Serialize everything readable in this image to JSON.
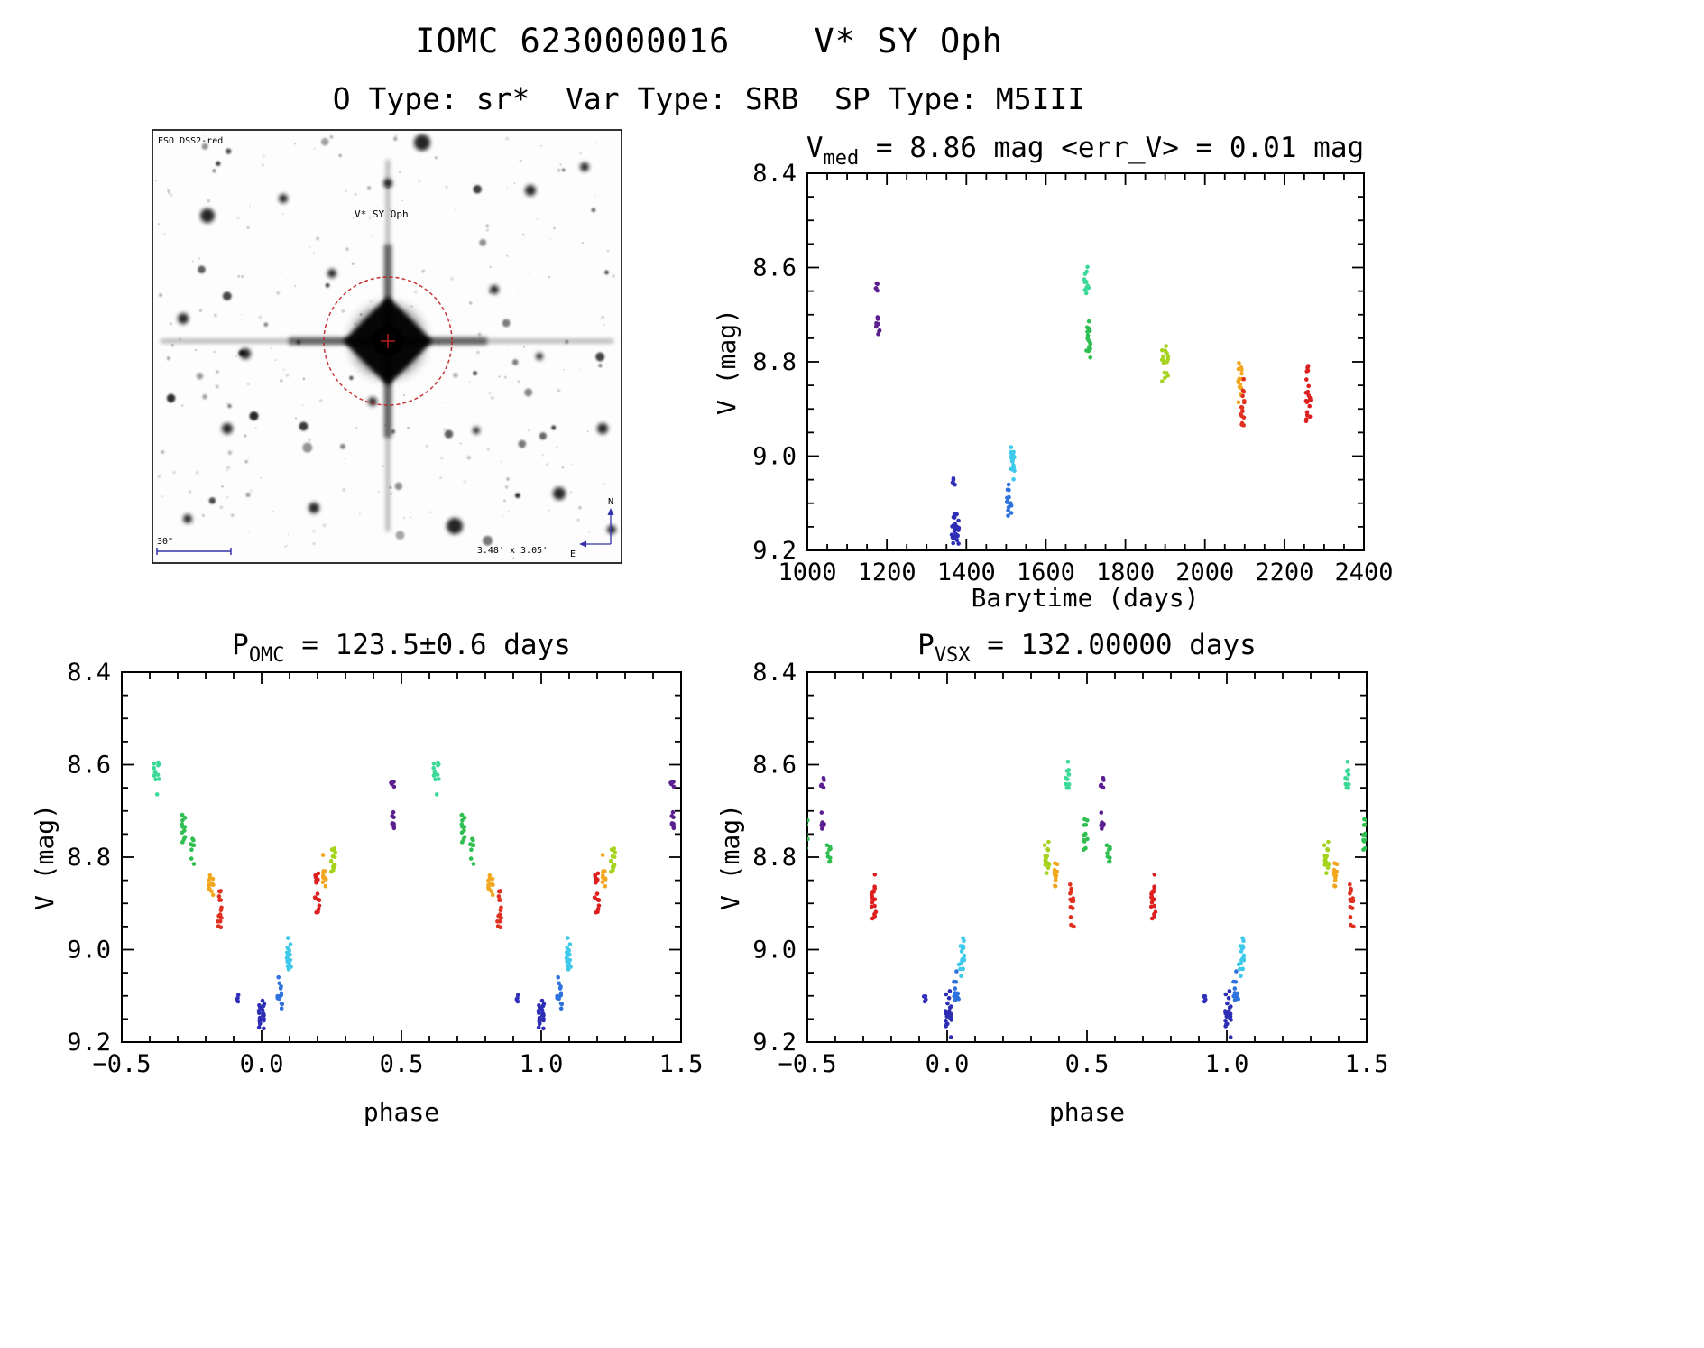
{
  "page": {
    "title": "IOMC 6230000016    V* SY Oph",
    "subtitle": "O Type: sr*  Var Type: SRB  SP Type: M5III"
  },
  "finder_image": {
    "survey_label": "ESO DSS2-red",
    "target_label": "V* SY Oph",
    "scale_label": "30\"",
    "fov_label": "3.48' x 3.05'",
    "compass_north": "N",
    "compass_east": "E",
    "annotation_color": "#c02020",
    "meta_color": "#3333aa"
  },
  "chart_data": [
    {
      "type": "scatter",
      "title_parts": {
        "base": "V",
        "sub": "med",
        "rest": " = 8.86 mag <err_V> = 0.01 mag"
      },
      "xlabel": "Barytime (days)",
      "ylabel": "V (mag)",
      "xlim": [
        1000,
        2400
      ],
      "ylim": [
        8.4,
        9.2
      ],
      "y_down": true,
      "x_minor": 50,
      "y_minor": 0.05,
      "xticks": {
        "values": [
          1000,
          1200,
          1400,
          1600,
          1800,
          2000,
          2200,
          2400
        ],
        "labels": [
          "1000",
          "1200",
          "1400",
          "1600",
          "1800",
          "2000",
          "2200",
          "2400"
        ]
      },
      "yticks": {
        "values": [
          8.4,
          8.6,
          8.8,
          9.0,
          9.2
        ],
        "labels": [
          "8.4",
          "8.6",
          "8.8",
          "9.0",
          "9.2"
        ]
      },
      "clusters": [
        {
          "name": "epoch1a-purple",
          "color": "#5b1f8f",
          "x": 1176,
          "x_spread": 10,
          "v_min": 8.63,
          "v_max": 8.665,
          "n": 5
        },
        {
          "name": "epoch1b-purple",
          "color": "#5b1f8f",
          "x": 1177,
          "x_spread": 12,
          "v_min": 8.695,
          "v_max": 8.75,
          "n": 10
        },
        {
          "name": "epoch2a-indigo",
          "color": "#3330bb",
          "x": 1367,
          "x_spread": 10,
          "v_min": 9.04,
          "v_max": 9.075,
          "n": 5
        },
        {
          "name": "epoch2b-indigo",
          "color": "#2d2db5",
          "x": 1372,
          "x_spread": 18,
          "v_min": 9.11,
          "v_max": 9.19,
          "n": 24
        },
        {
          "name": "epoch3-blue",
          "color": "#2e72dd",
          "x": 1508,
          "x_spread": 12,
          "v_min": 9.05,
          "v_max": 9.135,
          "n": 16
        },
        {
          "name": "epoch4-cyan",
          "color": "#3fc9ea",
          "x": 1516,
          "x_spread": 10,
          "v_min": 8.965,
          "v_max": 9.06,
          "n": 20
        },
        {
          "name": "epoch5a-springgreen",
          "color": "#3cd998",
          "x": 1702,
          "x_spread": 12,
          "v_min": 8.585,
          "v_max": 8.67,
          "n": 12
        },
        {
          "name": "epoch5b-green",
          "color": "#2fbf50",
          "x": 1707,
          "x_spread": 10,
          "v_min": 8.7,
          "v_max": 8.81,
          "n": 20
        },
        {
          "name": "epoch6-chartreuse",
          "color": "#a6d41e",
          "x": 1900,
          "x_spread": 16,
          "v_min": 8.75,
          "v_max": 8.85,
          "n": 18
        },
        {
          "name": "epoch7-orange",
          "color": "#f2a71f",
          "x": 2089,
          "x_spread": 10,
          "v_min": 8.785,
          "v_max": 8.9,
          "n": 14
        },
        {
          "name": "epoch8-redorange",
          "color": "#e03020",
          "x": 2094,
          "x_spread": 10,
          "v_min": 8.82,
          "v_max": 8.965,
          "n": 16
        },
        {
          "name": "epoch9-red",
          "color": "#dd1f1f",
          "x": 2260,
          "x_spread": 12,
          "v_min": 8.8,
          "v_max": 8.94,
          "n": 20
        }
      ]
    },
    {
      "type": "scatter",
      "title_parts": {
        "base": "P",
        "sub": "OMC",
        "rest": " = 123.5±0.6 days"
      },
      "xlabel": "phase",
      "ylabel": "V (mag)",
      "xlim": [
        -0.5,
        1.5
      ],
      "ylim": [
        8.4,
        9.2
      ],
      "y_down": true,
      "x_minor": 0.1,
      "y_minor": 0.05,
      "phase_repeat": 1.0,
      "xticks": {
        "values": [
          -0.5,
          0.0,
          0.5,
          1.0,
          1.5
        ],
        "labels": [
          "−0.5",
          "0.0",
          "0.5",
          "1.0",
          "1.5"
        ]
      },
      "yticks": {
        "values": [
          8.4,
          8.6,
          8.8,
          9.0,
          9.2
        ],
        "labels": [
          "8.4",
          "8.6",
          "8.8",
          "9.0",
          "9.2"
        ]
      },
      "clusters": [
        {
          "name": "springgreen",
          "color": "#3cd998",
          "x": -0.375,
          "x_spread": 0.022,
          "v_min": 8.585,
          "v_max": 8.67,
          "n": 12
        },
        {
          "name": "green-a",
          "color": "#2fbf50",
          "x": -0.278,
          "x_spread": 0.018,
          "v_min": 8.7,
          "v_max": 8.79,
          "n": 13
        },
        {
          "name": "green-b",
          "color": "#2fbf50",
          "x": -0.247,
          "x_spread": 0.015,
          "v_min": 8.755,
          "v_max": 8.825,
          "n": 9
        },
        {
          "name": "orange-desc",
          "color": "#f2a71f",
          "x": -0.182,
          "x_spread": 0.02,
          "v_min": 8.82,
          "v_max": 8.905,
          "n": 14
        },
        {
          "name": "redorange-desc",
          "color": "#e03020",
          "x": -0.15,
          "x_spread": 0.018,
          "v_min": 8.855,
          "v_max": 8.97,
          "n": 15
        },
        {
          "name": "indigo-small",
          "color": "#3330bb",
          "x": -0.085,
          "x_spread": 0.012,
          "v_min": 9.095,
          "v_max": 9.115,
          "n": 4
        },
        {
          "name": "indigo-min",
          "color": "#2d2db5",
          "x": 0.0,
          "x_spread": 0.022,
          "v_min": 9.1,
          "v_max": 9.19,
          "n": 24
        },
        {
          "name": "blue-rise",
          "color": "#2e72dd",
          "x": 0.065,
          "x_spread": 0.018,
          "v_min": 9.05,
          "v_max": 9.135,
          "n": 14
        },
        {
          "name": "cyan-rise",
          "color": "#3fc9ea",
          "x": 0.1,
          "x_spread": 0.022,
          "v_min": 8.965,
          "v_max": 9.06,
          "n": 18
        },
        {
          "name": "red-rise",
          "color": "#dd1f1f",
          "x": 0.2,
          "x_spread": 0.018,
          "v_min": 8.82,
          "v_max": 8.945,
          "n": 18
        },
        {
          "name": "orange-rise",
          "color": "#f2a71f",
          "x": 0.226,
          "x_spread": 0.015,
          "v_min": 8.79,
          "v_max": 8.88,
          "n": 10
        },
        {
          "name": "chartreuse",
          "color": "#a6d41e",
          "x": 0.256,
          "x_spread": 0.018,
          "v_min": 8.75,
          "v_max": 8.85,
          "n": 14
        },
        {
          "name": "purple-max-a",
          "color": "#5b1f8f",
          "x": 0.468,
          "x_spread": 0.012,
          "v_min": 8.63,
          "v_max": 8.665,
          "n": 5
        },
        {
          "name": "purple-max-b",
          "color": "#5b1f8f",
          "x": 0.468,
          "x_spread": 0.014,
          "v_min": 8.695,
          "v_max": 8.75,
          "n": 9
        }
      ]
    },
    {
      "type": "scatter",
      "title_parts": {
        "base": "P",
        "sub": "VSX",
        "rest": " = 132.00000 days"
      },
      "xlabel": "phase",
      "ylabel": "V (mag)",
      "xlim": [
        -0.5,
        1.5
      ],
      "ylim": [
        8.4,
        9.2
      ],
      "y_down": true,
      "x_minor": 0.1,
      "y_minor": 0.05,
      "phase_repeat": 1.0,
      "xticks": {
        "values": [
          -0.5,
          0.0,
          0.5,
          1.0,
          1.5
        ],
        "labels": [
          "−0.5",
          "0.0",
          "0.5",
          "1.0",
          "1.5"
        ]
      },
      "yticks": {
        "values": [
          8.4,
          8.6,
          8.8,
          9.0,
          9.2
        ],
        "labels": [
          "8.4",
          "8.6",
          "8.8",
          "9.0",
          "9.2"
        ]
      },
      "clusters": [
        {
          "name": "green-edge",
          "color": "#2fbf50",
          "x": 0.495,
          "x_spread": 0.02,
          "v_min": 8.7,
          "v_max": 8.8,
          "n": 13
        },
        {
          "name": "purple-a",
          "color": "#5b1f8f",
          "x": -0.446,
          "x_spread": 0.012,
          "v_min": 8.62,
          "v_max": 8.665,
          "n": 5
        },
        {
          "name": "purple-b",
          "color": "#5b1f8f",
          "x": -0.444,
          "x_spread": 0.014,
          "v_min": 8.695,
          "v_max": 8.75,
          "n": 9
        },
        {
          "name": "green-small",
          "color": "#2fbf50",
          "x": -0.424,
          "x_spread": 0.013,
          "v_min": 8.755,
          "v_max": 8.84,
          "n": 9
        },
        {
          "name": "red",
          "color": "#dd1f1f",
          "x": -0.264,
          "x_spread": 0.018,
          "v_min": 8.82,
          "v_max": 8.945,
          "n": 18
        },
        {
          "name": "indigo-small",
          "color": "#3330bb",
          "x": -0.08,
          "x_spread": 0.012,
          "v_min": 9.095,
          "v_max": 9.115,
          "n": 4
        },
        {
          "name": "indigo-min",
          "color": "#2d2db5",
          "x": 0.005,
          "x_spread": 0.022,
          "v_min": 9.08,
          "v_max": 9.19,
          "n": 24
        },
        {
          "name": "blue",
          "color": "#2e72dd",
          "x": 0.032,
          "x_spread": 0.018,
          "v_min": 9.04,
          "v_max": 9.13,
          "n": 14
        },
        {
          "name": "cyan",
          "color": "#3fc9ea",
          "x": 0.052,
          "x_spread": 0.02,
          "v_min": 8.96,
          "v_max": 9.06,
          "n": 18
        },
        {
          "name": "chartreuse",
          "color": "#a6d41e",
          "x": 0.356,
          "x_spread": 0.018,
          "v_min": 8.75,
          "v_max": 8.85,
          "n": 14
        },
        {
          "name": "orange",
          "color": "#f2a71f",
          "x": 0.39,
          "x_spread": 0.015,
          "v_min": 8.79,
          "v_max": 8.885,
          "n": 12
        },
        {
          "name": "springgreen",
          "color": "#3cd998",
          "x": 0.432,
          "x_spread": 0.016,
          "v_min": 8.585,
          "v_max": 8.67,
          "n": 12
        },
        {
          "name": "redorange",
          "color": "#e03020",
          "x": 0.447,
          "x_spread": 0.015,
          "v_min": 8.845,
          "v_max": 8.97,
          "n": 13
        }
      ]
    }
  ]
}
